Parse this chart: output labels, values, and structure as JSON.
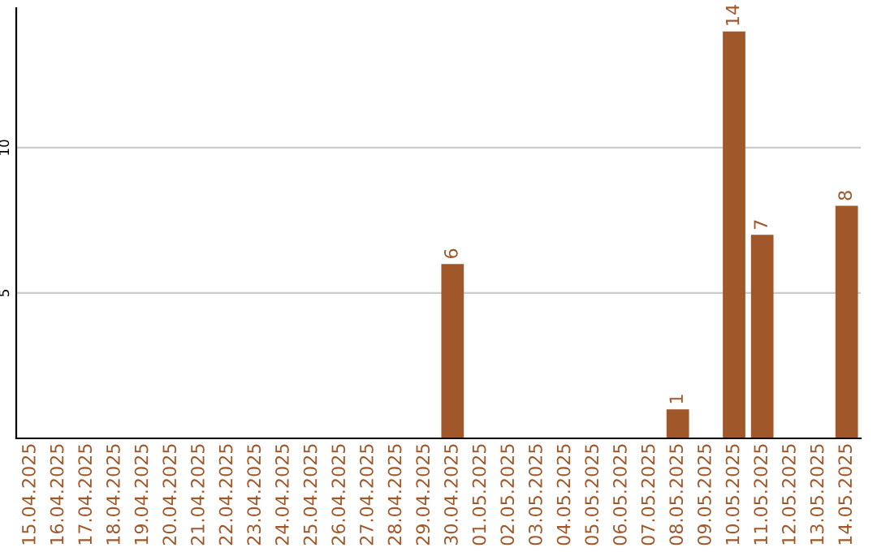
{
  "chart_data": {
    "type": "bar",
    "categories": [
      "15.04.2025",
      "16.04.2025",
      "17.04.2025",
      "18.04.2025",
      "19.04.2025",
      "20.04.2025",
      "21.04.2025",
      "22.04.2025",
      "23.04.2025",
      "24.04.2025",
      "25.04.2025",
      "26.04.2025",
      "27.04.2025",
      "28.04.2025",
      "29.04.2025",
      "30.04.2025",
      "01.05.2025",
      "02.05.2025",
      "03.05.2025",
      "04.05.2025",
      "05.05.2025",
      "06.05.2025",
      "07.05.2025",
      "08.05.2025",
      "09.05.2025",
      "10.05.2025",
      "11.05.2025",
      "12.05.2025",
      "13.05.2025",
      "14.05.2025"
    ],
    "values": [
      0,
      0,
      0,
      0,
      0,
      0,
      0,
      0,
      0,
      0,
      0,
      0,
      0,
      0,
      0,
      6,
      0,
      0,
      0,
      0,
      0,
      0,
      0,
      1,
      0,
      14,
      7,
      0,
      0,
      8
    ],
    "value_labels": [
      null,
      null,
      null,
      null,
      null,
      null,
      null,
      null,
      null,
      null,
      null,
      null,
      null,
      null,
      null,
      "6",
      null,
      null,
      null,
      null,
      null,
      null,
      null,
      "1",
      null,
      "14",
      "7",
      null,
      null,
      "8"
    ],
    "color": "#a0582a",
    "ylim": [
      0,
      14.8
    ],
    "yticks": [
      5,
      10
    ],
    "grid": "y",
    "legend": false
  }
}
